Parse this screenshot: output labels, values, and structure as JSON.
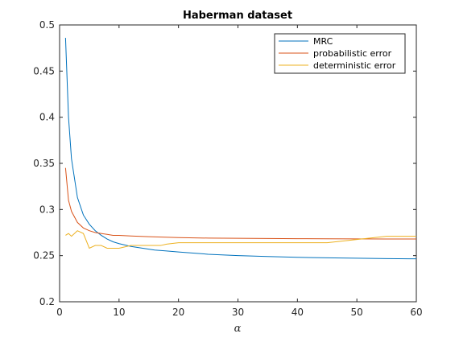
{
  "chart_data": {
    "type": "line",
    "title": "Haberman dataset",
    "xlabel": "α",
    "ylabel": "",
    "xlim": [
      0,
      60
    ],
    "ylim": [
      0.2,
      0.5
    ],
    "xticks": [
      0,
      10,
      20,
      30,
      40,
      50,
      60
    ],
    "yticks": [
      0.2,
      0.25,
      0.3,
      0.35,
      0.4,
      0.45,
      0.5
    ],
    "xtick_labels": [
      "0",
      "10",
      "20",
      "30",
      "40",
      "50",
      "60"
    ],
    "ytick_labels": [
      "0.2",
      "0.25",
      "0.3",
      "0.35",
      "0.4",
      "0.45",
      "0.5"
    ],
    "grid": false,
    "legend": "top-right",
    "series": [
      {
        "name": "MRC",
        "color": "#0072BD",
        "x": [
          1,
          1.5,
          2,
          3,
          4,
          5,
          6,
          7,
          8,
          9,
          10,
          12,
          14,
          16,
          18,
          20,
          25,
          30,
          35,
          40,
          45,
          50,
          55,
          60
        ],
        "y": [
          0.486,
          0.4,
          0.355,
          0.313,
          0.294,
          0.284,
          0.277,
          0.272,
          0.268,
          0.265,
          0.263,
          0.26,
          0.258,
          0.256,
          0.255,
          0.254,
          0.2515,
          0.25,
          0.249,
          0.2482,
          0.2476,
          0.2472,
          0.2468,
          0.2465
        ]
      },
      {
        "name": "probabilistic error",
        "color": "#D95319",
        "x": [
          1,
          1.5,
          2,
          3,
          4,
          5,
          6,
          7,
          8,
          9,
          10,
          12,
          15,
          20,
          25,
          30,
          35,
          40,
          45,
          50,
          55,
          60
        ],
        "y": [
          0.345,
          0.31,
          0.298,
          0.286,
          0.28,
          0.277,
          0.275,
          0.274,
          0.273,
          0.272,
          0.272,
          0.2713,
          0.2705,
          0.2695,
          0.269,
          0.2688,
          0.2686,
          0.2684,
          0.2682,
          0.2681,
          0.268,
          0.268
        ]
      },
      {
        "name": "deterministic error",
        "color": "#EDB120",
        "x": [
          1,
          1.5,
          2,
          3,
          4,
          5,
          6,
          7,
          8,
          9,
          10,
          11,
          12,
          13,
          15,
          17,
          18,
          20,
          25,
          30,
          35,
          40,
          45,
          50,
          55,
          60
        ],
        "y": [
          0.272,
          0.274,
          0.271,
          0.277,
          0.274,
          0.258,
          0.261,
          0.261,
          0.258,
          0.258,
          0.258,
          0.2595,
          0.261,
          0.261,
          0.261,
          0.261,
          0.2625,
          0.264,
          0.264,
          0.264,
          0.264,
          0.264,
          0.264,
          0.2675,
          0.271,
          0.271
        ]
      }
    ]
  }
}
